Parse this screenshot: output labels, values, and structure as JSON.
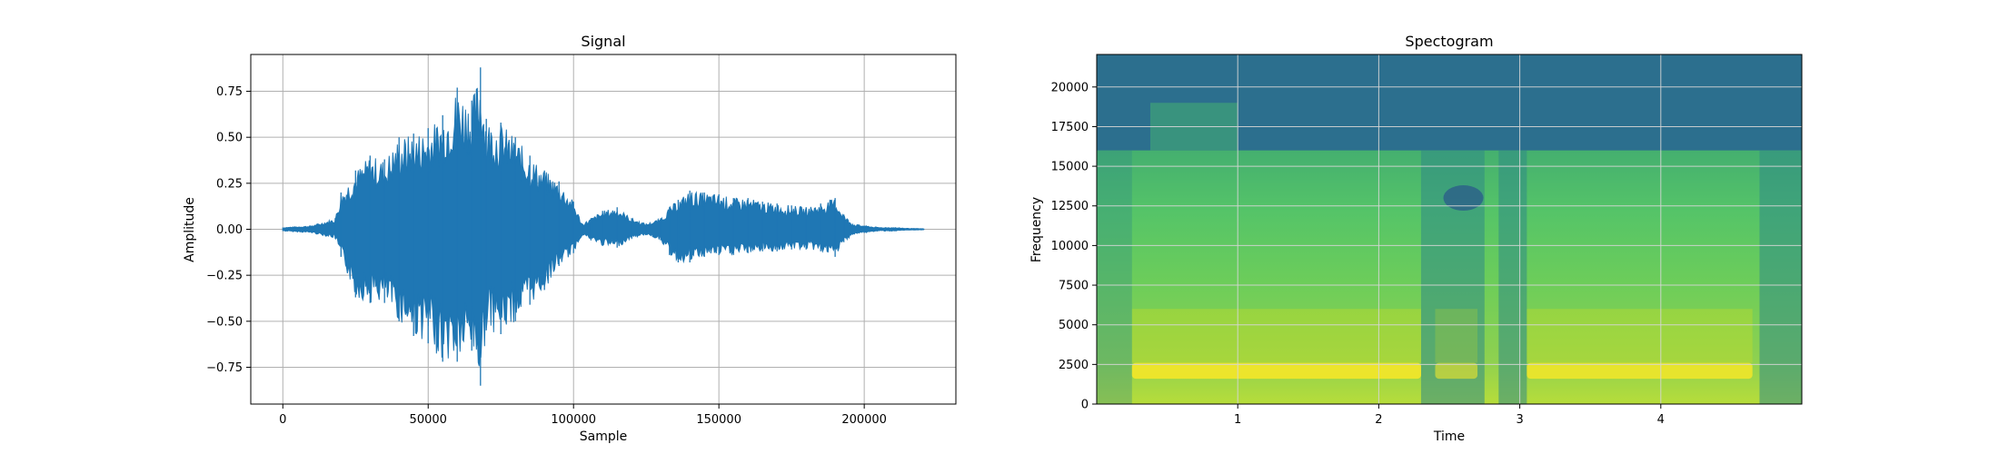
{
  "chart_data": [
    {
      "type": "line",
      "title": "Signal",
      "xlabel": "Sample",
      "ylabel": "Amplitude",
      "xlim": [
        -11025,
        231525
      ],
      "ylim": [
        -0.95,
        0.95
      ],
      "xticks": [
        0,
        50000,
        100000,
        150000,
        200000
      ],
      "xtick_labels": [
        "0",
        "50000",
        "100000",
        "150000",
        "200000"
      ],
      "yticks": [
        -0.75,
        -0.5,
        -0.25,
        0.0,
        0.25,
        0.5,
        0.75
      ],
      "ytick_labels": [
        "−0.75",
        "−0.50",
        "−0.25",
        "0.00",
        "0.25",
        "0.50",
        "0.75"
      ],
      "grid": true,
      "line_color": "#1f77b4",
      "envelope": {
        "x": [
          0,
          10000,
          18000,
          20000,
          25000,
          30000,
          35000,
          40000,
          45000,
          50000,
          55000,
          60000,
          65000,
          68000,
          70000,
          75000,
          80000,
          85000,
          90000,
          95000,
          100000,
          103000,
          106000,
          110000,
          115000,
          120000,
          125000,
          130000,
          133000,
          136000,
          140000,
          145000,
          150000,
          155000,
          160000,
          165000,
          170000,
          175000,
          180000,
          185000,
          190000,
          193000,
          196000,
          200000,
          205000,
          210000,
          215000,
          220500
        ],
        "upper": [
          0.01,
          0.02,
          0.06,
          0.2,
          0.32,
          0.4,
          0.38,
          0.5,
          0.52,
          0.55,
          0.62,
          0.77,
          0.7,
          0.88,
          0.6,
          0.58,
          0.5,
          0.4,
          0.32,
          0.26,
          0.15,
          0.03,
          0.06,
          0.1,
          0.12,
          0.06,
          0.03,
          0.06,
          0.12,
          0.16,
          0.21,
          0.2,
          0.19,
          0.17,
          0.17,
          0.15,
          0.14,
          0.13,
          0.12,
          0.14,
          0.17,
          0.08,
          0.03,
          0.02,
          0.01,
          0.01,
          0.005,
          0.003
        ],
        "lower": [
          -0.01,
          -0.02,
          -0.05,
          -0.15,
          -0.37,
          -0.4,
          -0.4,
          -0.5,
          -0.58,
          -0.62,
          -0.72,
          -0.72,
          -0.66,
          -0.85,
          -0.55,
          -0.57,
          -0.5,
          -0.41,
          -0.33,
          -0.2,
          -0.13,
          -0.03,
          -0.06,
          -0.09,
          -0.1,
          -0.05,
          -0.03,
          -0.06,
          -0.14,
          -0.18,
          -0.18,
          -0.15,
          -0.14,
          -0.14,
          -0.13,
          -0.12,
          -0.12,
          -0.11,
          -0.11,
          -0.12,
          -0.15,
          -0.07,
          -0.03,
          -0.02,
          -0.01,
          -0.01,
          -0.005,
          -0.003
        ]
      }
    },
    {
      "type": "heatmap",
      "title": "Spectogram",
      "xlabel": "Time",
      "ylabel": "Frequency",
      "xlim": [
        0,
        5.0
      ],
      "ylim": [
        0,
        22050
      ],
      "xticks": [
        1,
        2,
        3,
        4
      ],
      "xtick_labels": [
        "1",
        "2",
        "3",
        "4"
      ],
      "yticks": [
        0,
        2500,
        5000,
        7500,
        10000,
        12500,
        15000,
        17500,
        20000
      ],
      "ytick_labels": [
        "0",
        "2500",
        "5000",
        "7500",
        "10000",
        "12500",
        "15000",
        "17500",
        "20000"
      ],
      "grid": true,
      "colormap": "viridis",
      "colors": {
        "low": "#2c6f8e",
        "mid": "#3fae78",
        "high": "#d8e219",
        "peak": "#f0e62a"
      },
      "cutoff_frequency": 16000,
      "formant_frequency": 2000
    }
  ]
}
